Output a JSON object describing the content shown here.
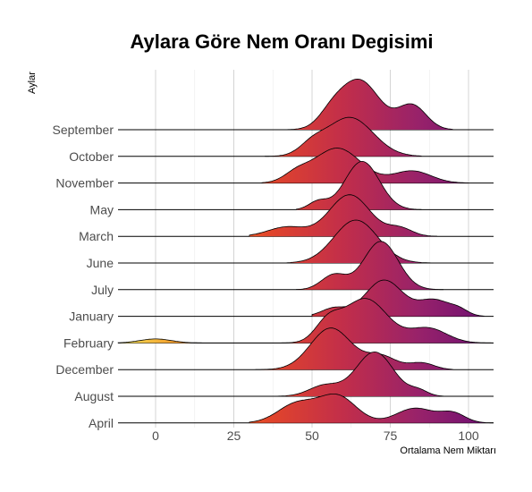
{
  "chart_data": {
    "type": "ridgeline",
    "title": "Aylara Göre Nem Oranı Degisimi",
    "xlabel": "Ortalama Nem Miktarı",
    "ylabel": "Aylar",
    "xlim": [
      -12,
      108
    ],
    "x_ticks": [
      0,
      25,
      50,
      75,
      100
    ],
    "grid": true,
    "fill": "gradient by x value (inferno-style: yellow → orange → red → purple)",
    "gradient_colors": [
      "#f2e85c",
      "#f7841a",
      "#e2452a",
      "#c22e4a",
      "#98226a",
      "#6a0f73"
    ],
    "categories": [
      "September",
      "October",
      "November",
      "May",
      "March",
      "June",
      "July",
      "January",
      "February",
      "December",
      "August",
      "April"
    ],
    "series": [
      {
        "name": "September",
        "peaks": [
          {
            "mean": 65,
            "sd": 6.5,
            "h": 1.85
          },
          {
            "mean": 82,
            "sd": 4.5,
            "h": 0.9
          },
          {
            "mean": 56,
            "sd": 4,
            "h": 0.4
          }
        ],
        "range": [
          38,
          95
        ]
      },
      {
        "name": "October",
        "peaks": [
          {
            "mean": 62,
            "sd": 7.5,
            "h": 1.45
          },
          {
            "mean": 50,
            "sd": 4,
            "h": 0.35
          }
        ],
        "range": [
          35,
          85
        ]
      },
      {
        "name": "November",
        "peaks": [
          {
            "mean": 58,
            "sd": 7.5,
            "h": 1.3
          },
          {
            "mean": 82,
            "sd": 6,
            "h": 0.45
          },
          {
            "mean": 45,
            "sd": 4,
            "h": 0.3
          }
        ],
        "range": [
          34,
          100
        ]
      },
      {
        "name": "May",
        "peaks": [
          {
            "mean": 66,
            "sd": 5.5,
            "h": 1.8
          },
          {
            "mean": 52,
            "sd": 3,
            "h": 0.3
          }
        ],
        "range": [
          45,
          85
        ]
      },
      {
        "name": "March",
        "peaks": [
          {
            "mean": 62,
            "sd": 6.5,
            "h": 1.55
          },
          {
            "mean": 42,
            "sd": 6,
            "h": 0.35
          },
          {
            "mean": 78,
            "sd": 4,
            "h": 0.3
          }
        ],
        "range": [
          30,
          90
        ]
      },
      {
        "name": "June",
        "peaks": [
          {
            "mean": 64,
            "sd": 7,
            "h": 1.6
          }
        ],
        "range": [
          42,
          88
        ]
      },
      {
        "name": "July",
        "peaks": [
          {
            "mean": 72,
            "sd": 5.5,
            "h": 1.8
          },
          {
            "mean": 57,
            "sd": 4,
            "h": 0.55
          }
        ],
        "range": [
          45,
          92
        ]
      },
      {
        "name": "January",
        "peaks": [
          {
            "mean": 73,
            "sd": 6,
            "h": 1.35
          },
          {
            "mean": 89,
            "sd": 5,
            "h": 0.6
          },
          {
            "mean": 97,
            "sd": 3,
            "h": 0.2
          },
          {
            "mean": 57,
            "sd": 4,
            "h": 0.3
          }
        ],
        "range": [
          50,
          105
        ]
      },
      {
        "name": "February",
        "peaks": [
          {
            "mean": 67,
            "sd": 7,
            "h": 1.65
          },
          {
            "mean": 55,
            "sd": 4,
            "h": 0.7
          },
          {
            "mean": 87,
            "sd": 6,
            "h": 0.55
          },
          {
            "mean": 0,
            "sd": 5,
            "h": 0.15
          }
        ],
        "range": [
          -12,
          108
        ]
      },
      {
        "name": "December",
        "peaks": [
          {
            "mean": 56,
            "sd": 6.5,
            "h": 1.55
          },
          {
            "mean": 72,
            "sd": 5,
            "h": 0.5
          },
          {
            "mean": 85,
            "sd": 4,
            "h": 0.25
          }
        ],
        "range": [
          32,
          95
        ]
      },
      {
        "name": "August",
        "peaks": [
          {
            "mean": 70,
            "sd": 6,
            "h": 1.65
          },
          {
            "mean": 54,
            "sd": 5,
            "h": 0.4
          },
          {
            "mean": 84,
            "sd": 3,
            "h": 0.2
          }
        ],
        "range": [
          38,
          92
        ]
      },
      {
        "name": "April",
        "peaks": [
          {
            "mean": 58,
            "sd": 6,
            "h": 1.0
          },
          {
            "mean": 45,
            "sd": 6,
            "h": 0.7
          },
          {
            "mean": 83,
            "sd": 6,
            "h": 0.55
          },
          {
            "mean": 95,
            "sd": 4,
            "h": 0.35
          }
        ],
        "range": [
          30,
          108
        ]
      }
    ]
  }
}
